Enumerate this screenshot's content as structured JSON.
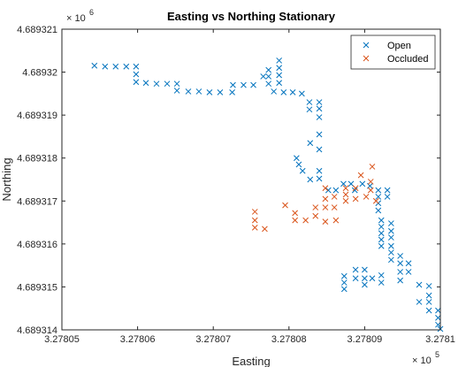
{
  "chart_data": {
    "type": "scatter",
    "title": "Easting vs Northing Stationary",
    "xlabel": "Easting",
    "ylabel": "Northing",
    "xlim": [
      327805.0,
      327810.0
    ],
    "ylim": [
      4689314.0,
      4689321.0
    ],
    "x_ticks": [
      327805,
      327806,
      327807,
      327808,
      327809,
      327810
    ],
    "y_ticks": [
      4689314,
      4689315,
      4689316,
      4689317,
      4689318,
      4689319,
      4689320,
      4689321
    ],
    "x_tick_labels": [
      "3.27805",
      "3.27806",
      "3.27807",
      "3.27808",
      "3.27809",
      "3.2781"
    ],
    "y_tick_labels": [
      "4.689314",
      "4.689315",
      "4.689316",
      "4.689317",
      "4.689318",
      "4.689319",
      "4.68932",
      "4.689321"
    ],
    "x_exponent": {
      "base": "× 10",
      "power": "5"
    },
    "y_exponent": {
      "base": "× 10",
      "power": "6"
    },
    "marker": "x",
    "grid": false,
    "legend": "top-right",
    "series": [
      {
        "name": "Open",
        "color": "#0072BD",
        "points": [
          [
            327805.43,
            4689320.15
          ],
          [
            327805.57,
            4689320.13
          ],
          [
            327805.71,
            4689320.13
          ],
          [
            327805.85,
            4689320.13
          ],
          [
            327805.98,
            4689320.13
          ],
          [
            327805.98,
            4689319.95
          ],
          [
            327805.98,
            4689319.77
          ],
          [
            327806.11,
            4689319.75
          ],
          [
            327806.25,
            4689319.73
          ],
          [
            327806.39,
            4689319.73
          ],
          [
            327806.52,
            4689319.73
          ],
          [
            327806.52,
            4689319.57
          ],
          [
            327806.67,
            4689319.55
          ],
          [
            327806.81,
            4689319.55
          ],
          [
            327806.95,
            4689319.53
          ],
          [
            327807.09,
            4689319.53
          ],
          [
            327807.25,
            4689319.53
          ],
          [
            327807.26,
            4689319.7
          ],
          [
            327807.4,
            4689319.7
          ],
          [
            327807.53,
            4689319.7
          ],
          [
            327807.66,
            4689319.9
          ],
          [
            327807.73,
            4689320.05
          ],
          [
            327807.73,
            4689319.9
          ],
          [
            327807.73,
            4689319.73
          ],
          [
            327807.8,
            4689319.55
          ],
          [
            327807.87,
            4689320.27
          ],
          [
            327807.87,
            4689320.1
          ],
          [
            327807.87,
            4689319.93
          ],
          [
            327807.87,
            4689319.75
          ],
          [
            327807.93,
            4689319.53
          ],
          [
            327808.05,
            4689319.53
          ],
          [
            327808.17,
            4689319.5
          ],
          [
            327808.27,
            4689319.3
          ],
          [
            327808.27,
            4689319.13
          ],
          [
            327808.4,
            4689319.3
          ],
          [
            327808.4,
            4689319.15
          ],
          [
            327808.4,
            4689318.95
          ],
          [
            327808.4,
            4689318.55
          ],
          [
            327808.28,
            4689318.35
          ],
          [
            327808.4,
            4689318.2
          ],
          [
            327808.1,
            4689318.0
          ],
          [
            327808.13,
            4689317.85
          ],
          [
            327808.18,
            4689317.7
          ],
          [
            327808.4,
            4689317.7
          ],
          [
            327808.4,
            4689317.52
          ],
          [
            327808.28,
            4689317.5
          ],
          [
            327808.52,
            4689317.25
          ],
          [
            327808.62,
            4689317.25
          ],
          [
            327808.72,
            4689317.4
          ],
          [
            327808.82,
            4689317.4
          ],
          [
            327808.87,
            4689317.25
          ],
          [
            327808.97,
            4689317.4
          ],
          [
            327809.07,
            4689317.35
          ],
          [
            327809.18,
            4689317.25
          ],
          [
            327809.18,
            4689317.1
          ],
          [
            327809.18,
            4689316.95
          ],
          [
            327809.18,
            4689316.78
          ],
          [
            327809.3,
            4689317.25
          ],
          [
            327809.3,
            4689317.1
          ],
          [
            327809.22,
            4689316.55
          ],
          [
            327809.22,
            4689316.4
          ],
          [
            327809.22,
            4689316.25
          ],
          [
            327809.22,
            4689316.1
          ],
          [
            327809.22,
            4689315.95
          ],
          [
            327809.35,
            4689316.48
          ],
          [
            327809.35,
            4689316.3
          ],
          [
            327809.35,
            4689316.15
          ],
          [
            327809.35,
            4689315.95
          ],
          [
            327809.35,
            4689315.8
          ],
          [
            327809.35,
            4689315.63
          ],
          [
            327809.47,
            4689315.72
          ],
          [
            327809.47,
            4689315.55
          ],
          [
            327809.47,
            4689315.35
          ],
          [
            327809.47,
            4689315.15
          ],
          [
            327809.58,
            4689315.55
          ],
          [
            327809.58,
            4689315.35
          ],
          [
            327809.22,
            4689315.27
          ],
          [
            327809.22,
            4689315.1
          ],
          [
            327809.1,
            4689315.2
          ],
          [
            327809.0,
            4689315.4
          ],
          [
            327809.0,
            4689315.2
          ],
          [
            327809.0,
            4689315.05
          ],
          [
            327808.88,
            4689315.4
          ],
          [
            327808.88,
            4689315.2
          ],
          [
            327808.73,
            4689315.25
          ],
          [
            327808.73,
            4689315.1
          ],
          [
            327808.73,
            4689314.95
          ],
          [
            327809.72,
            4689315.05
          ],
          [
            327809.85,
            4689315.02
          ],
          [
            327809.85,
            4689314.8
          ],
          [
            327809.85,
            4689314.65
          ],
          [
            327809.85,
            4689314.45
          ],
          [
            327809.72,
            4689314.65
          ],
          [
            327809.97,
            4689314.45
          ],
          [
            327809.97,
            4689314.28
          ],
          [
            327809.97,
            4689314.12
          ],
          [
            327810.0,
            4689314.02
          ]
        ]
      },
      {
        "name": "Occluded",
        "color": "#D95319",
        "points": [
          [
            327807.55,
            4689316.75
          ],
          [
            327807.55,
            4689316.55
          ],
          [
            327807.55,
            4689316.38
          ],
          [
            327807.68,
            4689316.35
          ],
          [
            327807.95,
            4689316.9
          ],
          [
            327808.08,
            4689316.72
          ],
          [
            327808.08,
            4689316.55
          ],
          [
            327808.22,
            4689316.55
          ],
          [
            327808.35,
            4689316.85
          ],
          [
            327808.35,
            4689316.65
          ],
          [
            327808.48,
            4689317.3
          ],
          [
            327808.48,
            4689317.05
          ],
          [
            327808.48,
            4689316.85
          ],
          [
            327808.48,
            4689316.52
          ],
          [
            327808.6,
            4689317.1
          ],
          [
            327808.6,
            4689316.85
          ],
          [
            327808.62,
            4689316.55
          ],
          [
            327808.75,
            4689317.3
          ],
          [
            327808.75,
            4689317.15
          ],
          [
            327808.75,
            4689317.0
          ],
          [
            327808.88,
            4689317.3
          ],
          [
            327808.88,
            4689317.05
          ],
          [
            327808.95,
            4689317.6
          ],
          [
            327809.02,
            4689317.1
          ],
          [
            327809.08,
            4689317.45
          ],
          [
            327809.08,
            4689317.25
          ],
          [
            327809.1,
            4689317.8
          ],
          [
            327809.15,
            4689317.0
          ]
        ]
      }
    ]
  }
}
